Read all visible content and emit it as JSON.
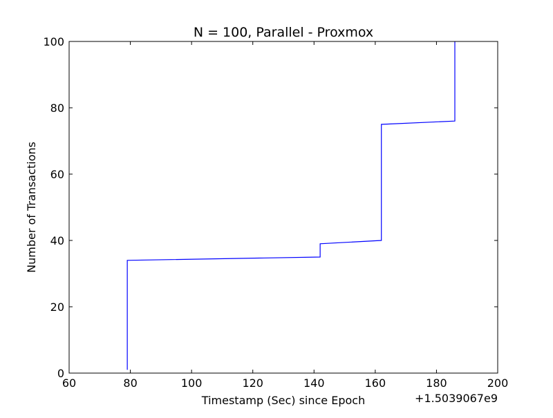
{
  "chart_data": {
    "type": "line",
    "title": "N = 100, Parallel - Proxmox",
    "xlabel": "Timestamp (Sec) since Epoch",
    "ylabel": "Number of Transactions",
    "x_offset_label": "+1.5039067e9",
    "xlim": [
      60,
      200
    ],
    "ylim": [
      0,
      100
    ],
    "xticks": [
      60,
      80,
      100,
      120,
      140,
      160,
      180,
      200
    ],
    "yticks": [
      0,
      20,
      40,
      60,
      80,
      100
    ],
    "grid": false,
    "series": [
      {
        "color": "#0000ff",
        "points": [
          [
            79,
            1
          ],
          [
            79,
            34
          ],
          [
            142,
            35
          ],
          [
            142,
            39
          ],
          [
            162,
            40
          ],
          [
            162,
            75
          ],
          [
            186,
            76
          ],
          [
            186,
            100
          ]
        ]
      }
    ]
  }
}
